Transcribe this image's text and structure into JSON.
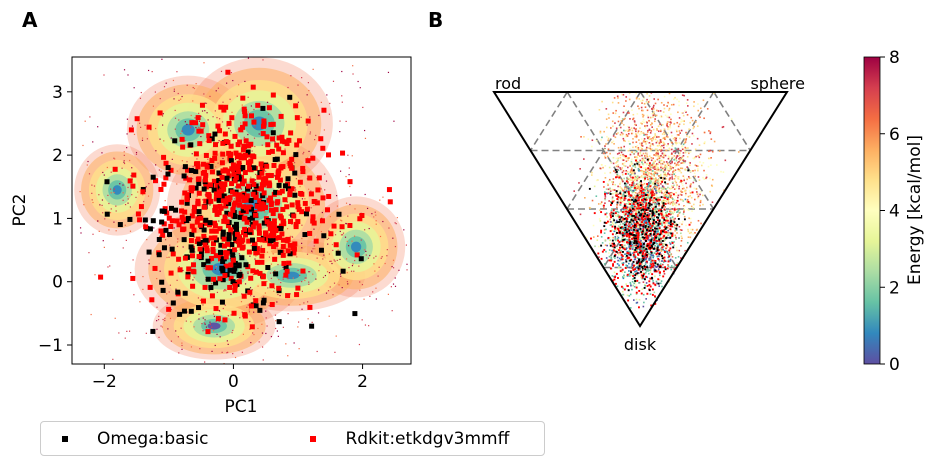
{
  "panel_labels": [
    "A",
    "B"
  ],
  "legend": [
    {
      "label": "Omega:basic",
      "color": "#000000"
    },
    {
      "label": "Rdkit:etkdgv3mmff",
      "color": "#ff0000"
    }
  ],
  "chart_data": [
    {
      "type": "scatter",
      "panel": "A",
      "title": "",
      "xlabel": "PC1",
      "ylabel": "PC2",
      "xlim": [
        -2.5,
        2.75
      ],
      "ylim": [
        -1.3,
        3.55
      ],
      "xticks": [
        -2,
        0,
        2
      ],
      "yticks": [
        -1,
        0,
        1,
        2,
        3
      ],
      "xticklabels": [
        "−2",
        "0",
        "2"
      ],
      "yticklabels": [
        "−1",
        "0",
        "1",
        "2",
        "3"
      ],
      "background": {
        "type": "density_scatter",
        "colored_by": "Energy [kcal/mol]",
        "clusters": [
          {
            "center": [
              -0.3,
              -0.7
            ],
            "spread": [
              0.5,
              0.28
            ]
          },
          {
            "center": [
              -1.8,
              1.45
            ],
            "spread": [
              0.35,
              0.38
            ]
          },
          {
            "center": [
              0.9,
              0.1
            ],
            "spread": [
              0.6,
              0.3
            ]
          },
          {
            "center": [
              1.9,
              0.55
            ],
            "spread": [
              0.4,
              0.42
            ]
          },
          {
            "center": [
              -0.7,
              2.4
            ],
            "spread": [
              0.5,
              0.45
            ]
          },
          {
            "center": [
              -0.2,
              0.2
            ],
            "spread": [
              0.7,
              0.5
            ]
          },
          {
            "center": [
              0.4,
              2.5
            ],
            "spread": [
              0.6,
              0.55
            ]
          },
          {
            "center": [
              0.3,
              1.2
            ],
            "spread": [
              0.7,
              0.6
            ]
          }
        ]
      },
      "series": [
        {
          "name": "Omega:basic",
          "color": "#000000",
          "marker": "square",
          "center": [
            -0.1,
            0.9
          ],
          "spread": [
            0.7,
            0.8
          ],
          "count": 220
        },
        {
          "name": "Rdkit:etkdgv3mmff",
          "color": "#ff0000",
          "marker": "square",
          "center": [
            0.1,
            1.2
          ],
          "spread": [
            0.65,
            0.75
          ],
          "count": 600
        }
      ]
    },
    {
      "type": "ternary",
      "panel": "B",
      "vertex_labels": {
        "top_left": "rod",
        "top_right": "sphere",
        "bottom": "disk"
      },
      "grid": "dashed",
      "grid_divisions": 4,
      "point_cloud": {
        "description": "dense point cloud near disk vertex",
        "black_count": 260,
        "red_count": 500,
        "background_count": 1800
      }
    }
  ],
  "colorbar": {
    "label": "Energy [kcal/mol]",
    "min": 0,
    "max": 8,
    "ticks": [
      "0",
      "2",
      "4",
      "6",
      "8"
    ],
    "colormap": "Spectral_r"
  }
}
